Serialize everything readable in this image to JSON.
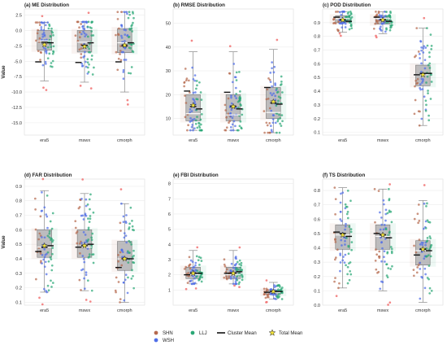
{
  "figure": {
    "legend": {
      "items": [
        {
          "label": "SHN",
          "color": "#b5694e",
          "kind": "dot"
        },
        {
          "label": "WSH",
          "color": "#4f6ee8",
          "kind": "dot"
        },
        {
          "label": "LLJ",
          "color": "#2aa876",
          "kind": "dot"
        },
        {
          "label": "Cluster Mean",
          "color": "#111111",
          "kind": "line"
        },
        {
          "label": "Total Mean",
          "color": "#f2e33a",
          "kind": "star"
        }
      ]
    },
    "colors": {
      "SHN": "#b5694e",
      "WSH": "#4f6ee8",
      "LLJ": "#2aa876",
      "box": "#a9a9a9",
      "outlier": "#f06a6a"
    }
  },
  "chart_data": [
    {
      "type": "box",
      "title": "(a) ME Distribution",
      "ylabel": "Value",
      "ylim": [
        -17,
        3.5
      ],
      "yticks": [
        2.5,
        0.0,
        -2.5,
        -5.0,
        -7.5,
        -10.0,
        -12.5,
        -15.0
      ],
      "categories": [
        "era5",
        "mswx",
        "cmorph"
      ],
      "boxes": [
        {
          "category": "era5",
          "whisker_low": -8.2,
          "q1": -3.2,
          "median": -1.7,
          "q3": 0.0,
          "whisker_high": 1.3,
          "total_mean": -2.3,
          "cluster_means": {
            "SHN": -5.1,
            "WSH": -1.9,
            "LLJ": -2.0
          }
        },
        {
          "category": "mswx",
          "whisker_low": -8.4,
          "q1": -3.5,
          "median": -1.9,
          "q3": 0.0,
          "whisker_high": 1.4,
          "total_mean": -2.6,
          "cluster_means": {
            "SHN": -5.2,
            "WSH": -2.4,
            "LLJ": -2.0
          }
        },
        {
          "category": "cmorph",
          "whisker_low": -10.0,
          "q1": -3.6,
          "median": -2.0,
          "q3": 0.3,
          "whisker_high": 3.0,
          "total_mean": -2.4,
          "cluster_means": {
            "SHN": -5.1,
            "WSH": -2.5,
            "LLJ": -2.0
          }
        }
      ]
    },
    {
      "type": "box",
      "title": "(b) RMSE Distribution",
      "ylabel": "",
      "ylim": [
        3,
        56
      ],
      "yticks": [
        50,
        40,
        30,
        20,
        10
      ],
      "categories": [
        "era5",
        "mswx",
        "cmorph"
      ],
      "boxes": [
        {
          "category": "era5",
          "whisker_low": 5,
          "q1": 9,
          "median": 12,
          "q3": 20,
          "whisker_high": 38,
          "total_mean": 15.5,
          "cluster_means": {
            "SHN": 21.5,
            "WSH": 15.0,
            "LLJ": 14.0
          }
        },
        {
          "category": "mswx",
          "whisker_low": 5,
          "q1": 9,
          "median": 11.5,
          "q3": 20,
          "whisker_high": 38,
          "total_mean": 15.0,
          "cluster_means": {
            "SHN": 21.0,
            "WSH": 15.0,
            "LLJ": 14.0
          }
        },
        {
          "category": "cmorph",
          "whisker_low": 4,
          "q1": 10,
          "median": 12.5,
          "q3": 23,
          "whisker_high": 39,
          "total_mean": 17.0,
          "cluster_means": {
            "SHN": 23.0,
            "WSH": 16.5,
            "LLJ": 16.0
          }
        }
      ]
    },
    {
      "type": "box",
      "title": "(c) POD Distribution",
      "ylabel": "",
      "ylim": [
        0.08,
        1.0
      ],
      "yticks": [
        0.9,
        0.8,
        0.7,
        0.6,
        0.5,
        0.4,
        0.3,
        0.2,
        0.1
      ],
      "categories": [
        "era5",
        "mswx",
        "cmorph"
      ],
      "boxes": [
        {
          "category": "era5",
          "whisker_low": 0.83,
          "q1": 0.9,
          "median": 0.93,
          "q3": 0.95,
          "whisker_high": 0.98,
          "total_mean": 0.92,
          "cluster_means": {
            "SHN": 0.94,
            "WSH": 0.92,
            "LLJ": 0.91
          }
        },
        {
          "category": "mswx",
          "whisker_low": 0.82,
          "q1": 0.89,
          "median": 0.93,
          "q3": 0.95,
          "whisker_high": 0.98,
          "total_mean": 0.92,
          "cluster_means": {
            "SHN": 0.94,
            "WSH": 0.92,
            "LLJ": 0.91
          }
        },
        {
          "category": "cmorph",
          "whisker_low": 0.15,
          "q1": 0.44,
          "median": 0.52,
          "q3": 0.59,
          "whisker_high": 0.86,
          "total_mean": 0.52,
          "cluster_means": {
            "SHN": 0.52,
            "WSH": 0.53,
            "LLJ": 0.53
          }
        }
      ]
    },
    {
      "type": "box",
      "title": "(d) FAR Distribution",
      "ylabel": "Value",
      "ylim": [
        0.08,
        0.95
      ],
      "yticks": [
        0.9,
        0.8,
        0.7,
        0.6,
        0.5,
        0.4,
        0.3,
        0.2,
        0.1
      ],
      "categories": [
        "era5",
        "mswx",
        "cmorph"
      ],
      "boxes": [
        {
          "category": "era5",
          "whisker_low": 0.17,
          "q1": 0.41,
          "median": 0.48,
          "q3": 0.6,
          "whisker_high": 0.87,
          "total_mean": 0.49,
          "cluster_means": {
            "SHN": 0.45,
            "WSH": 0.48,
            "LLJ": 0.49
          }
        },
        {
          "category": "mswx",
          "whisker_low": 0.18,
          "q1": 0.41,
          "median": 0.48,
          "q3": 0.6,
          "whisker_high": 0.85,
          "total_mean": 0.49,
          "cluster_means": {
            "SHN": 0.48,
            "WSH": 0.49,
            "LLJ": 0.5
          }
        },
        {
          "category": "cmorph",
          "whisker_low": 0.1,
          "q1": 0.32,
          "median": 0.4,
          "q3": 0.52,
          "whisker_high": 0.78,
          "total_mean": 0.4,
          "cluster_means": {
            "SHN": 0.34,
            "WSH": 0.4,
            "LLJ": 0.4
          }
        }
      ]
    },
    {
      "type": "box",
      "title": "(e) FBI Distribution",
      "ylabel": "",
      "ylim": [
        0,
        8.3
      ],
      "yticks": [
        8,
        7,
        6,
        5,
        4,
        3,
        2,
        1
      ],
      "categories": [
        "era5",
        "mswx",
        "cmorph"
      ],
      "boxes": [
        {
          "category": "era5",
          "whisker_low": 1.4,
          "q1": 1.75,
          "median": 2.0,
          "q3": 2.5,
          "whisker_high": 3.6,
          "total_mean": 2.1,
          "cluster_means": {
            "SHN": 2.0,
            "WSH": 2.1,
            "LLJ": 2.1
          }
        },
        {
          "category": "mswx",
          "whisker_low": 1.4,
          "q1": 1.75,
          "median": 2.0,
          "q3": 2.5,
          "whisker_high": 3.6,
          "total_mean": 2.1,
          "cluster_means": {
            "SHN": 2.1,
            "WSH": 2.1,
            "LLJ": 2.2
          }
        },
        {
          "category": "cmorph",
          "whisker_low": 0.4,
          "q1": 0.7,
          "median": 0.85,
          "q3": 1.0,
          "whisker_high": 1.5,
          "total_mean": 0.9,
          "cluster_means": {
            "SHN": 0.85,
            "WSH": 0.9,
            "LLJ": 0.9
          }
        }
      ]
    },
    {
      "type": "box",
      "title": "(f) TS Distribution",
      "ylabel": "",
      "ylim": [
        0.0,
        0.88
      ],
      "yticks": [
        0.8,
        0.7,
        0.6,
        0.5,
        0.4,
        0.3,
        0.2,
        0.1,
        0.0
      ],
      "categories": [
        "era5",
        "mswx",
        "cmorph"
      ],
      "boxes": [
        {
          "category": "era5",
          "whisker_low": 0.12,
          "q1": 0.39,
          "median": 0.49,
          "q3": 0.56,
          "whisker_high": 0.82,
          "total_mean": 0.49,
          "cluster_means": {
            "SHN": 0.51,
            "WSH": 0.5,
            "LLJ": 0.48
          }
        },
        {
          "category": "mswx",
          "whisker_low": 0.1,
          "q1": 0.39,
          "median": 0.48,
          "q3": 0.56,
          "whisker_high": 0.81,
          "total_mean": 0.49,
          "cluster_means": {
            "SHN": 0.5,
            "WSH": 0.49,
            "LLJ": 0.47
          }
        },
        {
          "category": "cmorph",
          "whisker_low": 0.02,
          "q1": 0.28,
          "median": 0.38,
          "q3": 0.45,
          "whisker_high": 0.73,
          "total_mean": 0.39,
          "cluster_means": {
            "SHN": 0.35,
            "WSH": 0.39,
            "LLJ": 0.38
          }
        }
      ]
    }
  ]
}
